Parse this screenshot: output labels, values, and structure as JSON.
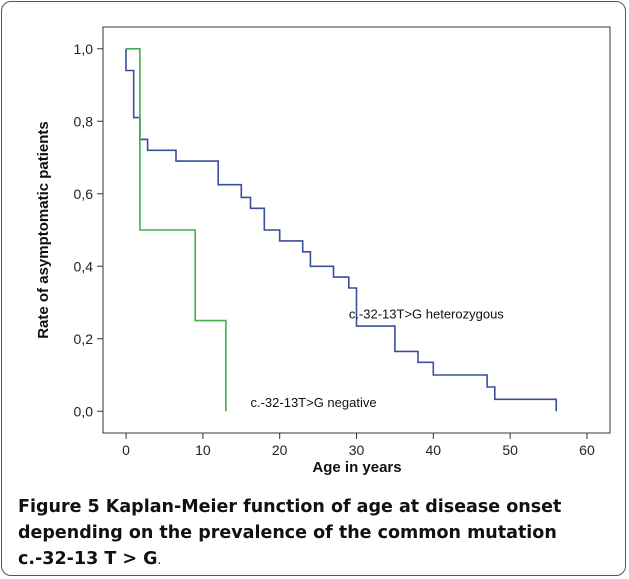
{
  "chart_data": {
    "type": "line",
    "xlabel": "Age in years",
    "ylabel": "Rate of asymptomatic patients",
    "xlim": [
      -3,
      63
    ],
    "ylim": [
      -0.06,
      1.06
    ],
    "x_ticks": [
      0,
      10,
      20,
      30,
      40,
      50,
      60
    ],
    "y_ticks": [
      "0,0",
      "0,2",
      "0,4",
      "0,6",
      "0,8",
      "1,0"
    ],
    "y_tick_values": [
      0.0,
      0.2,
      0.4,
      0.6,
      0.8,
      1.0
    ],
    "grid": false,
    "series": [
      {
        "name": "c.-32-13T>G heterozygous",
        "color": "#3a4f9a",
        "step": true,
        "points": [
          [
            0,
            1.0
          ],
          [
            0,
            0.94
          ],
          [
            1,
            0.94
          ],
          [
            1,
            0.81
          ],
          [
            1.8,
            0.81
          ],
          [
            1.8,
            0.75
          ],
          [
            2.8,
            0.75
          ],
          [
            2.8,
            0.72
          ],
          [
            6.5,
            0.72
          ],
          [
            6.5,
            0.69
          ],
          [
            12,
            0.69
          ],
          [
            12,
            0.625
          ],
          [
            15,
            0.625
          ],
          [
            15,
            0.59
          ],
          [
            16.2,
            0.59
          ],
          [
            16.2,
            0.56
          ],
          [
            18,
            0.56
          ],
          [
            18,
            0.5
          ],
          [
            20,
            0.5
          ],
          [
            20,
            0.47
          ],
          [
            23,
            0.47
          ],
          [
            23,
            0.44
          ],
          [
            24,
            0.44
          ],
          [
            24,
            0.4
          ],
          [
            27,
            0.4
          ],
          [
            27,
            0.37
          ],
          [
            29,
            0.37
          ],
          [
            29,
            0.34
          ],
          [
            30,
            0.34
          ],
          [
            30,
            0.235
          ],
          [
            35,
            0.235
          ],
          [
            35,
            0.165
          ],
          [
            38,
            0.165
          ],
          [
            38,
            0.135
          ],
          [
            40,
            0.135
          ],
          [
            40,
            0.1
          ],
          [
            47,
            0.1
          ],
          [
            47,
            0.067
          ],
          [
            48,
            0.067
          ],
          [
            48,
            0.033
          ],
          [
            56,
            0.033
          ],
          [
            56,
            0.0
          ]
        ],
        "label": "c.-32-13T>G heterozygous"
      },
      {
        "name": "c.-32-13T>G negative",
        "color": "#3db04a",
        "step": true,
        "points": [
          [
            0,
            1.0
          ],
          [
            1.8,
            1.0
          ],
          [
            1.8,
            0.5
          ],
          [
            9,
            0.5
          ],
          [
            9,
            0.25
          ],
          [
            13,
            0.25
          ],
          [
            13,
            0.0
          ]
        ],
        "label": "c.-32-13T>G negative"
      }
    ]
  },
  "caption": {
    "label": "Figure 5",
    "text": " Kaplan-Meier function of age at disease onset depending on the prevalence of the common mutation c.-32-13 T > G",
    "end": "."
  }
}
